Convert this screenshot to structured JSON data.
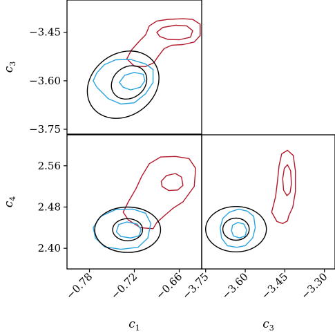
{
  "chart_data": [
    {
      "type": "contour",
      "panel": "c1-c3",
      "xlabel": "",
      "ylabel": "c3",
      "xlim": [
        -0.81,
        -0.63
      ],
      "ylim": [
        -3.765,
        -3.35
      ],
      "xticks": [],
      "yticks": [
        "−3.45",
        "−3.60",
        "−3.75"
      ],
      "ytick_values": [
        -3.45,
        -3.6,
        -3.75
      ],
      "series": [
        {
          "color": "#b2182b",
          "contours": [
            [
              [
                -0.712,
                -3.474
              ],
              [
                -0.705,
                -3.458
              ],
              [
                -0.7,
                -3.43
              ],
              [
                -0.69,
                -3.415
              ],
              [
                -0.675,
                -3.41
              ],
              [
                -0.655,
                -3.408
              ],
              [
                -0.642,
                -3.41
              ],
              [
                -0.632,
                -3.425
              ],
              [
                -0.632,
                -3.46
              ],
              [
                -0.64,
                -3.48
              ],
              [
                -0.655,
                -3.488
              ],
              [
                -0.67,
                -3.49
              ],
              [
                -0.68,
                -3.5
              ],
              [
                -0.688,
                -3.524
              ],
              [
                -0.694,
                -3.544
              ],
              [
                -0.705,
                -3.556
              ],
              [
                -0.72,
                -3.555
              ],
              [
                -0.73,
                -3.532
              ],
              [
                -0.724,
                -3.505
              ],
              [
                -0.712,
                -3.474
              ]
            ],
            [
              [
                -0.69,
                -3.45
              ],
              [
                -0.682,
                -3.435
              ],
              [
                -0.665,
                -3.428
              ],
              [
                -0.65,
                -3.43
              ],
              [
                -0.642,
                -3.445
              ],
              [
                -0.645,
                -3.465
              ],
              [
                -0.66,
                -3.473
              ],
              [
                -0.675,
                -3.472
              ],
              [
                -0.686,
                -3.463
              ],
              [
                -0.69,
                -3.45
              ]
            ]
          ]
        },
        {
          "color": "#29a3e0",
          "contours": [
            [
              [
                -0.775,
                -3.6
              ],
              [
                -0.77,
                -3.62
              ],
              [
                -0.755,
                -3.655
              ],
              [
                -0.738,
                -3.672
              ],
              [
                -0.72,
                -3.668
              ],
              [
                -0.705,
                -3.64
              ],
              [
                -0.695,
                -3.605
              ],
              [
                -0.695,
                -3.565
              ],
              [
                -0.705,
                -3.548
              ],
              [
                -0.725,
                -3.534
              ],
              [
                -0.745,
                -3.535
              ],
              [
                -0.76,
                -3.55
              ],
              [
                -0.77,
                -3.575
              ],
              [
                -0.775,
                -3.6
              ]
            ],
            [
              [
                -0.74,
                -3.605
              ],
              [
                -0.735,
                -3.62
              ],
              [
                -0.725,
                -3.628
              ],
              [
                -0.712,
                -3.62
              ],
              [
                -0.706,
                -3.6
              ],
              [
                -0.708,
                -3.58
              ],
              [
                -0.72,
                -3.574
              ],
              [
                -0.733,
                -3.583
              ],
              [
                -0.74,
                -3.605
              ]
            ]
          ]
        },
        {
          "color": "#000000",
          "ellipses": [
            {
              "center": [
                -0.735,
                -3.612
              ],
              "rx": 0.051,
              "ry": 0.096,
              "angle": -36
            },
            {
              "center": [
                -0.727,
                -3.605
              ],
              "rx": 0.025,
              "ry": 0.048,
              "angle": -36
            }
          ]
        }
      ]
    },
    {
      "type": "contour",
      "panel": "c1-c4",
      "xlabel": "c1",
      "ylabel": "c4",
      "xlim": [
        -0.81,
        -0.63
      ],
      "ylim": [
        2.36,
        2.62
      ],
      "xticks": [
        "−0.78",
        "−0.72",
        "−0.66"
      ],
      "xtick_values": [
        -0.78,
        -0.72,
        -0.66
      ],
      "yticks": [
        "2.56",
        "2.48",
        "2.40"
      ],
      "ytick_values": [
        2.56,
        2.48,
        2.4
      ],
      "series": [
        {
          "color": "#b2182b",
          "contours": [
            [
              [
                -0.735,
                2.47
              ],
              [
                -0.728,
                2.49
              ],
              [
                -0.718,
                2.515
              ],
              [
                -0.71,
                2.54
              ],
              [
                -0.7,
                2.564
              ],
              [
                -0.685,
                2.577
              ],
              [
                -0.665,
                2.578
              ],
              [
                -0.647,
                2.574
              ],
              [
                -0.638,
                2.555
              ],
              [
                -0.64,
                2.52
              ],
              [
                -0.655,
                2.49
              ],
              [
                -0.668,
                2.478
              ],
              [
                -0.68,
                2.463
              ],
              [
                -0.69,
                2.45
              ],
              [
                -0.695,
                2.438
              ],
              [
                -0.712,
                2.44
              ],
              [
                -0.728,
                2.455
              ],
              [
                -0.735,
                2.47
              ]
            ],
            [
              [
                -0.684,
                2.53
              ],
              [
                -0.677,
                2.541
              ],
              [
                -0.665,
                2.545
              ],
              [
                -0.657,
                2.538
              ],
              [
                -0.655,
                2.522
              ],
              [
                -0.662,
                2.513
              ],
              [
                -0.674,
                2.512
              ],
              [
                -0.683,
                2.52
              ],
              [
                -0.684,
                2.53
              ]
            ]
          ]
        },
        {
          "color": "#29a3e0",
          "contours": [
            [
              [
                -0.775,
                2.44
              ],
              [
                -0.772,
                2.42
              ],
              [
                -0.76,
                2.403
              ],
              [
                -0.738,
                2.398
              ],
              [
                -0.715,
                2.402
              ],
              [
                -0.702,
                2.42
              ],
              [
                -0.698,
                2.448
              ],
              [
                -0.705,
                2.468
              ],
              [
                -0.722,
                2.476
              ],
              [
                -0.745,
                2.475
              ],
              [
                -0.765,
                2.462
              ],
              [
                -0.775,
                2.44
              ]
            ],
            [
              [
                -0.744,
                2.432
              ],
              [
                -0.738,
                2.423
              ],
              [
                -0.725,
                2.42
              ],
              [
                -0.714,
                2.424
              ],
              [
                -0.711,
                2.436
              ],
              [
                -0.716,
                2.447
              ],
              [
                -0.73,
                2.451
              ],
              [
                -0.741,
                2.446
              ],
              [
                -0.744,
                2.432
              ]
            ]
          ]
        },
        {
          "color": "#000000",
          "ellipses": [
            {
              "center": [
                -0.729,
                2.436
              ],
              "rx": 0.044,
              "ry": 0.044,
              "angle": 0
            },
            {
              "center": [
                -0.729,
                2.436
              ],
              "rx": 0.02,
              "ry": 0.0215,
              "angle": 0
            }
          ]
        }
      ]
    },
    {
      "type": "contour",
      "panel": "c3-c4",
      "xlabel": "c3",
      "ylabel": "",
      "xlim": [
        -3.765,
        -3.26
      ],
      "ylim": [
        2.36,
        2.62
      ],
      "xticks": [
        "−3.75",
        "−3.60",
        "−3.45",
        "−3.30"
      ],
      "xtick_values": [
        -3.75,
        -3.6,
        -3.45,
        -3.3
      ],
      "yticks": [],
      "series": [
        {
          "color": "#b2182b",
          "contours": [
            [
              [
                -3.5,
                2.47
              ],
              [
                -3.485,
                2.5
              ],
              [
                -3.478,
                2.53
              ],
              [
                -3.472,
                2.56
              ],
              [
                -3.462,
                2.583
              ],
              [
                -3.44,
                2.59
              ],
              [
                -3.418,
                2.58
              ],
              [
                -3.41,
                2.55
              ],
              [
                -3.41,
                2.51
              ],
              [
                -3.42,
                2.48
              ],
              [
                -3.435,
                2.463
              ],
              [
                -3.44,
                2.453
              ],
              [
                -3.458,
                2.448
              ],
              [
                -3.48,
                2.452
              ],
              [
                -3.5,
                2.47
              ]
            ],
            [
              [
                -3.458,
                2.535
              ],
              [
                -3.452,
                2.555
              ],
              [
                -3.44,
                2.562
              ],
              [
                -3.428,
                2.55
              ],
              [
                -3.425,
                2.525
              ],
              [
                -3.43,
                2.508
              ],
              [
                -3.442,
                2.502
              ],
              [
                -3.455,
                2.513
              ],
              [
                -3.458,
                2.535
              ]
            ]
          ]
        },
        {
          "color": "#29a3e0",
          "contours": [
            [
              [
                -3.695,
                2.44
              ],
              [
                -3.69,
                2.42
              ],
              [
                -3.668,
                2.405
              ],
              [
                -3.632,
                2.402
              ],
              [
                -3.6,
                2.405
              ],
              [
                -3.572,
                2.42
              ],
              [
                -3.562,
                2.44
              ],
              [
                -3.568,
                2.462
              ],
              [
                -3.592,
                2.472
              ],
              [
                -3.625,
                2.476
              ],
              [
                -3.66,
                2.47
              ],
              [
                -3.685,
                2.458
              ],
              [
                -3.695,
                2.44
              ]
            ],
            [
              [
                -3.652,
                2.434
              ],
              [
                -3.645,
                2.424
              ],
              [
                -3.622,
                2.42
              ],
              [
                -3.6,
                2.424
              ],
              [
                -3.595,
                2.436
              ],
              [
                -3.605,
                2.447
              ],
              [
                -3.628,
                2.45
              ],
              [
                -3.648,
                2.445
              ],
              [
                -3.652,
                2.434
              ]
            ]
          ]
        },
        {
          "color": "#000000",
          "ellipses": [
            {
              "center": [
                -3.635,
                2.437
              ],
              "rx": 0.115,
              "ry": 0.044,
              "angle": 0
            },
            {
              "center": [
                -3.635,
                2.437
              ],
              "rx": 0.05,
              "ry": 0.0215,
              "angle": 0
            }
          ]
        }
      ]
    }
  ]
}
